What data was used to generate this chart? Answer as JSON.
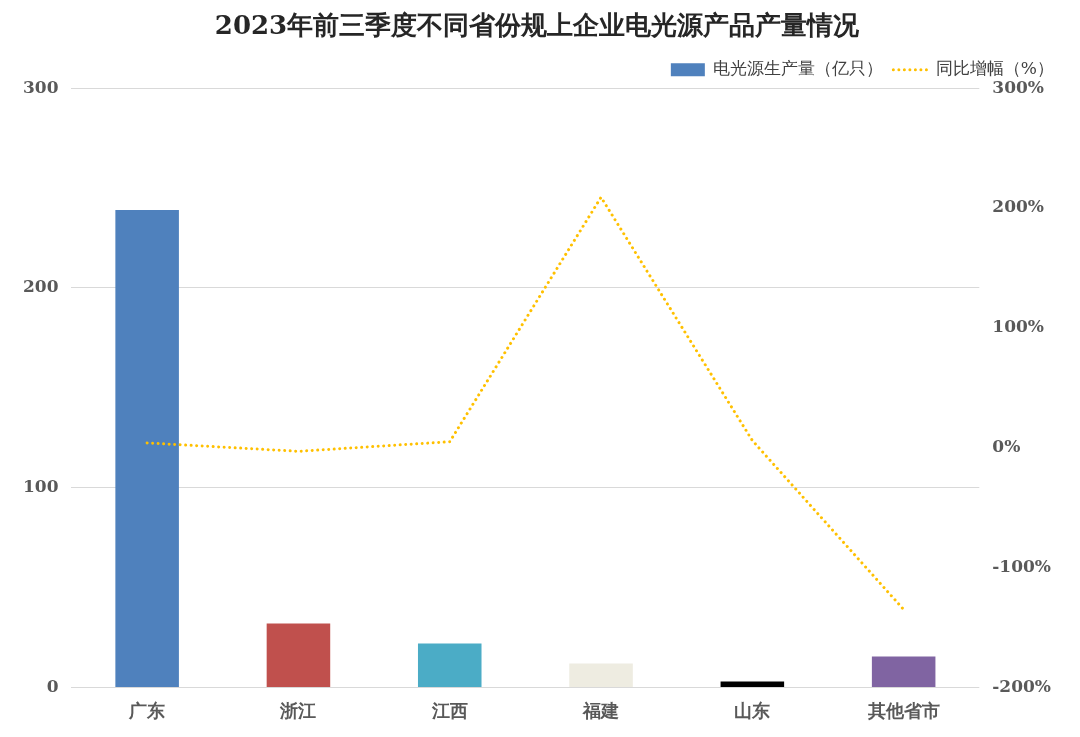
{
  "chart_data": {
    "type": "bar",
    "title": "2023年前三季度不同省份规上企业电光源产品产量情况",
    "categories": [
      "广东",
      "浙江",
      "江西",
      "福建",
      "山东",
      "其他省市"
    ],
    "series": [
      {
        "name": "电光源生产量（亿只）",
        "colors": [
          "#4f81bd",
          "#c0504d",
          "#4bacc6",
          "#eeece1",
          "#000000",
          "#8064a2"
        ],
        "values": [
          239,
          32,
          22,
          12,
          3,
          15.5
        ]
      },
      {
        "name": "同比增幅（%）",
        "type": "line",
        "axis": "y2",
        "color": "#ffc000",
        "line_style": "dotted",
        "values": [
          4,
          -3,
          5,
          209,
          6,
          -135
        ]
      }
    ],
    "ylim": [
      0,
      300
    ],
    "yticks": [
      0,
      100,
      200,
      300
    ],
    "y2lim": [
      -200,
      300
    ],
    "y2ticks": [
      {
        "value": -200,
        "label": "-200%"
      },
      {
        "value": -100,
        "label": "-100%"
      },
      {
        "value": 0,
        "label": "0%"
      },
      {
        "value": 100,
        "label": "100%"
      },
      {
        "value": 200,
        "label": "200%"
      },
      {
        "value": 300,
        "label": "300%"
      }
    ],
    "grid": "y",
    "legend": "top right"
  }
}
